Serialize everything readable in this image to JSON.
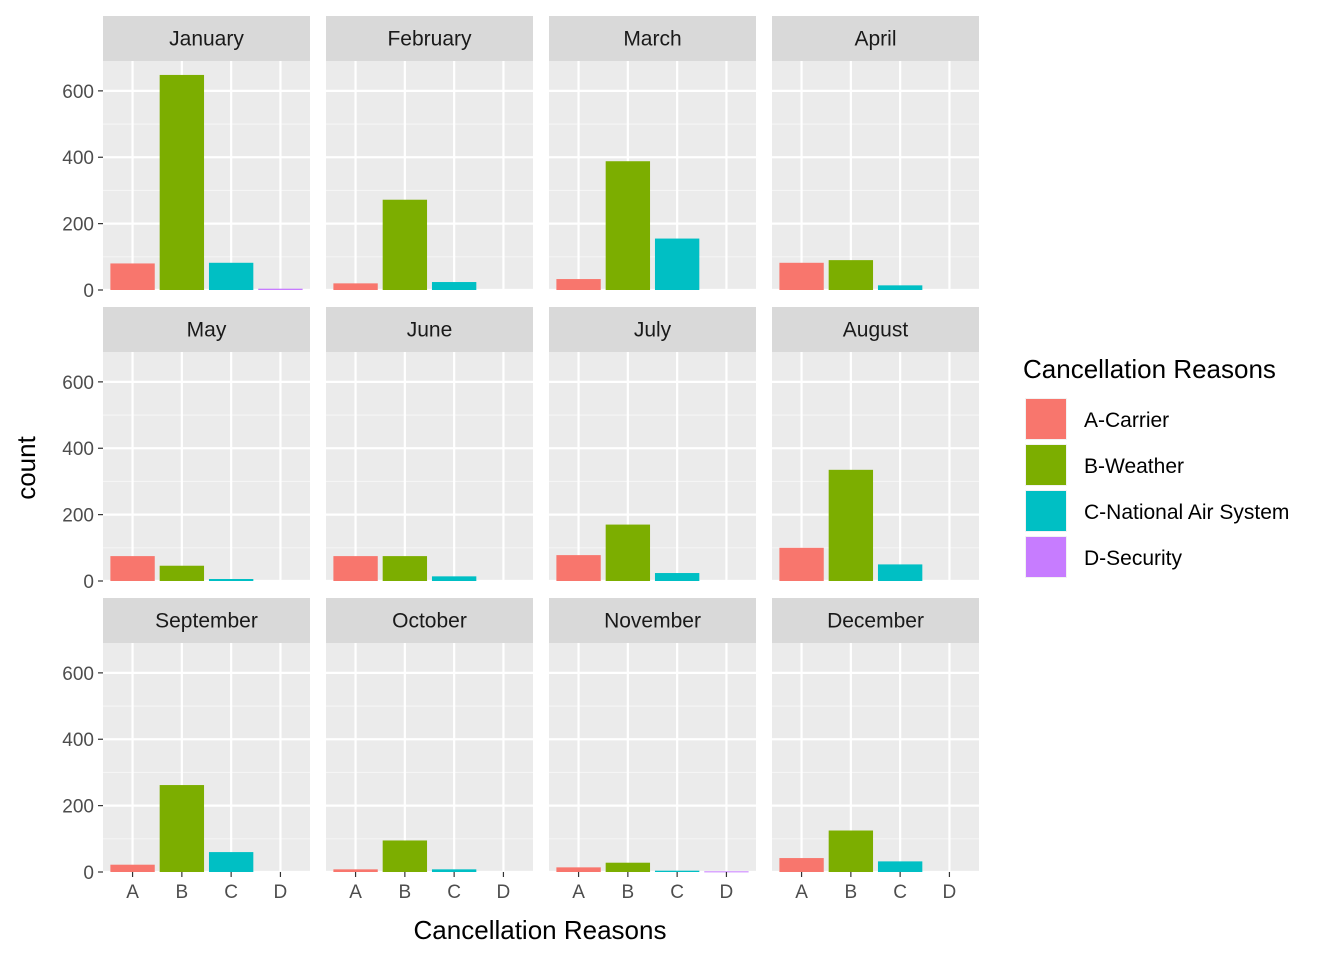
{
  "chart_data": {
    "type": "bar",
    "facet_by": "month",
    "categories": [
      "A",
      "B",
      "C",
      "D"
    ],
    "ylabel": "count",
    "xlabel": "Cancellation Reasons",
    "ylim": [
      0,
      690
    ],
    "yticks": [
      0,
      200,
      400,
      600
    ],
    "grid": true,
    "legend": {
      "title": "Cancellation Reasons",
      "placement": "right",
      "entries": [
        {
          "key": "A",
          "label": "A-Carrier",
          "color": "#F8766D"
        },
        {
          "key": "B",
          "label": "B-Weather",
          "color": "#7CAE00"
        },
        {
          "key": "C",
          "label": "C-National Air System",
          "color": "#00BFC4"
        },
        {
          "key": "D",
          "label": "D-Security",
          "color": "#C77CFF"
        }
      ]
    },
    "facets": [
      {
        "title": "January",
        "values": [
          80,
          648,
          82,
          4
        ]
      },
      {
        "title": "February",
        "values": [
          20,
          272,
          24,
          0
        ]
      },
      {
        "title": "March",
        "values": [
          33,
          388,
          155,
          0
        ]
      },
      {
        "title": "April",
        "values": [
          82,
          90,
          14,
          0
        ]
      },
      {
        "title": "May",
        "values": [
          75,
          46,
          6,
          0
        ]
      },
      {
        "title": "June",
        "values": [
          75,
          75,
          14,
          0
        ]
      },
      {
        "title": "July",
        "values": [
          78,
          170,
          24,
          0
        ]
      },
      {
        "title": "August",
        "values": [
          100,
          335,
          50,
          0
        ]
      },
      {
        "title": "September",
        "values": [
          22,
          262,
          60,
          0
        ]
      },
      {
        "title": "October",
        "values": [
          8,
          95,
          8,
          0
        ]
      },
      {
        "title": "November",
        "values": [
          14,
          28,
          4,
          2
        ]
      },
      {
        "title": "December",
        "values": [
          42,
          125,
          32,
          0
        ]
      }
    ]
  }
}
